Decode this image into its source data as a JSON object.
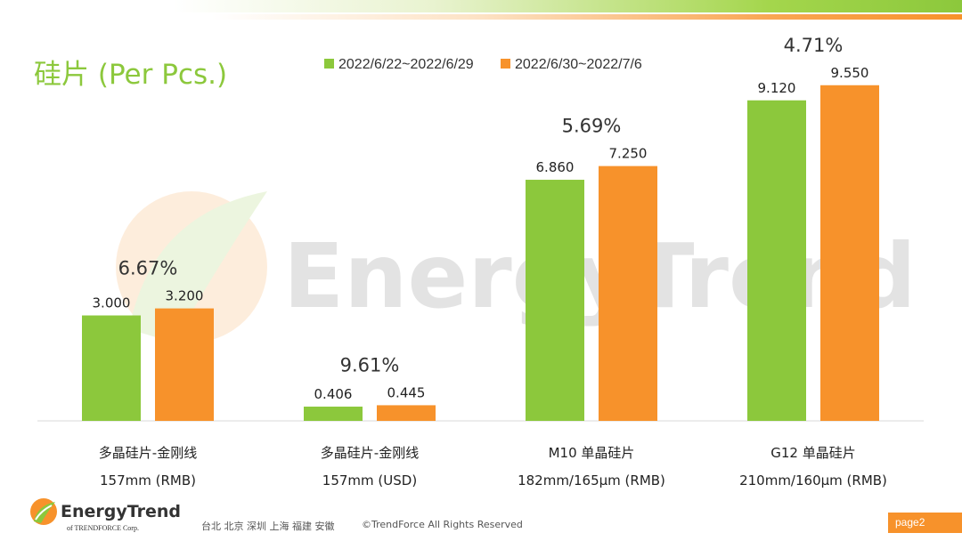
{
  "title": "硅片 (Per Pcs.)",
  "watermark": "EnergyTrend",
  "colors": {
    "green": "#8cc83c",
    "orange": "#f7922b",
    "title_green": "#8cc83c"
  },
  "legend": [
    {
      "label": "2022/6/22~2022/6/29",
      "color": "#8cc83c"
    },
    {
      "label": "2022/6/30~2022/7/6",
      "color": "#f7922b"
    }
  ],
  "chart_data": {
    "type": "bar",
    "categories": [
      [
        "多晶硅片-金刚线",
        "157mm (RMB)"
      ],
      [
        "多晶硅片-金刚线",
        "157mm (USD)"
      ],
      [
        "M10 单晶硅片",
        "182mm/165μm (RMB)"
      ],
      [
        "G12 单晶硅片",
        "210mm/160μm  (RMB)"
      ]
    ],
    "series": [
      {
        "name": "2022/6/22~2022/6/29",
        "values": [
          3.0,
          0.406,
          6.86,
          9.12
        ],
        "labels": [
          "3.000",
          "0.406",
          "6.860",
          "9.120"
        ]
      },
      {
        "name": "2022/6/30~2022/7/6",
        "values": [
          3.2,
          0.445,
          7.25,
          9.55
        ],
        "labels": [
          "3.200",
          "0.445",
          "7.250",
          "9.550"
        ]
      }
    ],
    "change_labels": [
      "6.67%",
      "9.61%",
      "5.69%",
      "4.71%"
    ],
    "ylim": [
      0,
      10
    ],
    "grid": false,
    "legend_position": "top"
  },
  "footer": {
    "logo_name": "EnergyTrend",
    "logo_sub": "of TRENDFORCE Corp.",
    "cities": "台北  北京  深圳  上海  福建  安徽",
    "copyright": "©TrendForce All Rights Reserved",
    "page": "page2"
  }
}
